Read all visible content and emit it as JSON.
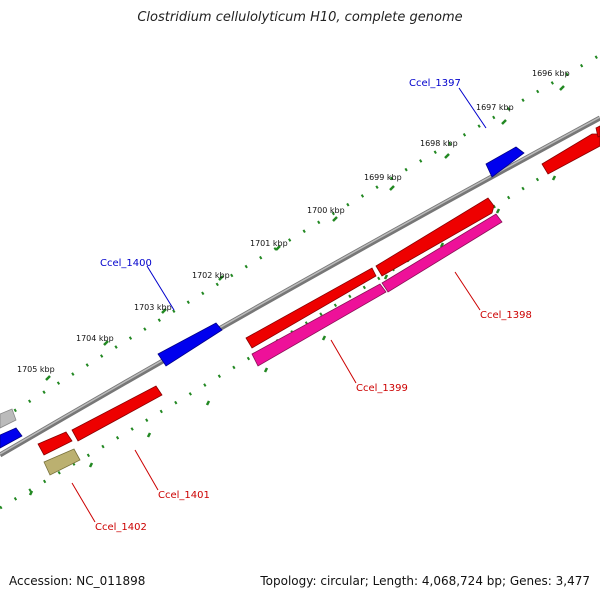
{
  "title": "Clostridium cellulolyticum H10, complete genome",
  "accession": "Accession: NC_011898",
  "summary": "Topology: circular; Length: 4,068,724 bp; Genes: 3,477",
  "colors": {
    "forward_gene": "#0000ee",
    "reverse_gene": "#ee0000",
    "rna_gene": "#ee1199",
    "pseudo_gene": "#bbb070",
    "other_gene": "#bbbbbb",
    "backbone": "#777777",
    "ruler": "#228822",
    "label_forward": "#0000cc",
    "label_reverse": "#cc0000"
  },
  "ruler_labels": [
    "1696 kbp",
    "1697 kbp",
    "1698 kbp",
    "1699 kbp",
    "1700 kbp",
    "1701 kbp",
    "1702 kbp",
    "1703 kbp",
    "1704 kbp",
    "1705 kbp"
  ],
  "gene_labels": [
    {
      "id": "ccel1397",
      "text": "Ccel_1397",
      "strand": "forward"
    },
    {
      "id": "ccel1398",
      "text": "Ccel_1398",
      "strand": "reverse"
    },
    {
      "id": "ccel1399",
      "text": "Ccel_1399",
      "strand": "reverse"
    },
    {
      "id": "ccel1400",
      "text": "Ccel_1400",
      "strand": "forward"
    },
    {
      "id": "ccel1401",
      "text": "Ccel_1401",
      "strand": "reverse"
    },
    {
      "id": "ccel1402",
      "text": "Ccel_1402",
      "strand": "reverse"
    }
  ]
}
